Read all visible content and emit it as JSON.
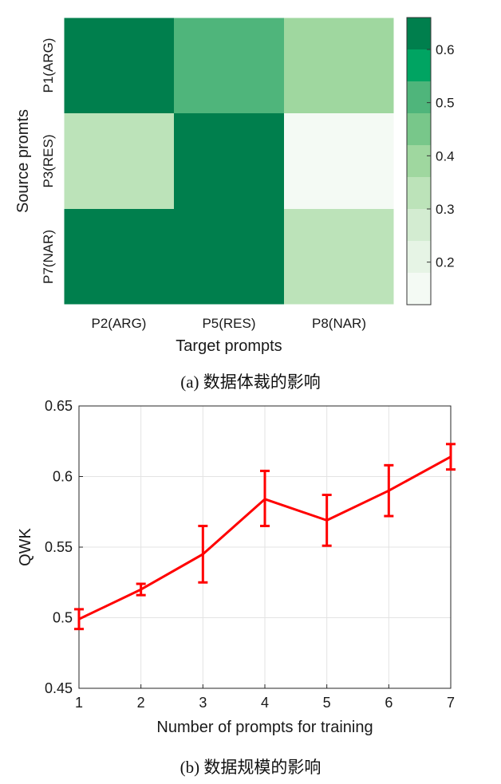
{
  "chart_data": [
    {
      "type": "heatmap",
      "xlabel": "Target prompts",
      "ylabel": "Source promts",
      "x_categories": [
        "P2(ARG)",
        "P5(RES)",
        "P8(NAR)"
      ],
      "y_categories": [
        "P1(ARG)",
        "P3(RES)",
        "P7(NAR)"
      ],
      "values": [
        [
          0.66,
          0.48,
          0.42
        ],
        [
          0.3,
          0.66,
          0.12
        ],
        [
          0.61,
          0.61,
          0.35
        ]
      ],
      "colorbar": {
        "range": [
          0.12,
          0.66
        ],
        "ticks": [
          0.2,
          0.3,
          0.4,
          0.5,
          0.6
        ],
        "tick_labels": [
          "0.2",
          "0.3",
          "0.4",
          "0.5",
          "0.6"
        ],
        "levels": [
          "#f4faf4",
          "#e6f4e5",
          "#d3ecd1",
          "#bce3b9",
          "#9fd79f",
          "#78c78a",
          "#4fb57b",
          "#00a462",
          "#007f4d"
        ]
      },
      "caption": "(a) 数据体裁的影响"
    },
    {
      "type": "line",
      "xlabel": "Number of prompts for training",
      "ylabel": "QWK",
      "x": [
        1,
        2,
        3,
        4,
        5,
        6,
        7
      ],
      "xticks": [
        "1",
        "2",
        "3",
        "4",
        "5",
        "6",
        "7"
      ],
      "yticks": [
        "0.45",
        "0.5",
        "0.55",
        "0.6",
        "0.65"
      ],
      "xlim": [
        1,
        7
      ],
      "ylim": [
        0.45,
        0.65
      ],
      "grid": true,
      "series": [
        {
          "values": [
            0.499,
            0.52,
            0.545,
            0.584,
            0.569,
            0.59,
            0.614
          ],
          "error_low": [
            0.492,
            0.516,
            0.525,
            0.565,
            0.551,
            0.572,
            0.605
          ],
          "error_high": [
            0.506,
            0.524,
            0.565,
            0.604,
            0.587,
            0.608,
            0.623
          ],
          "color": "#ff0000"
        }
      ],
      "caption": "(b) 数据规模的影响"
    }
  ]
}
